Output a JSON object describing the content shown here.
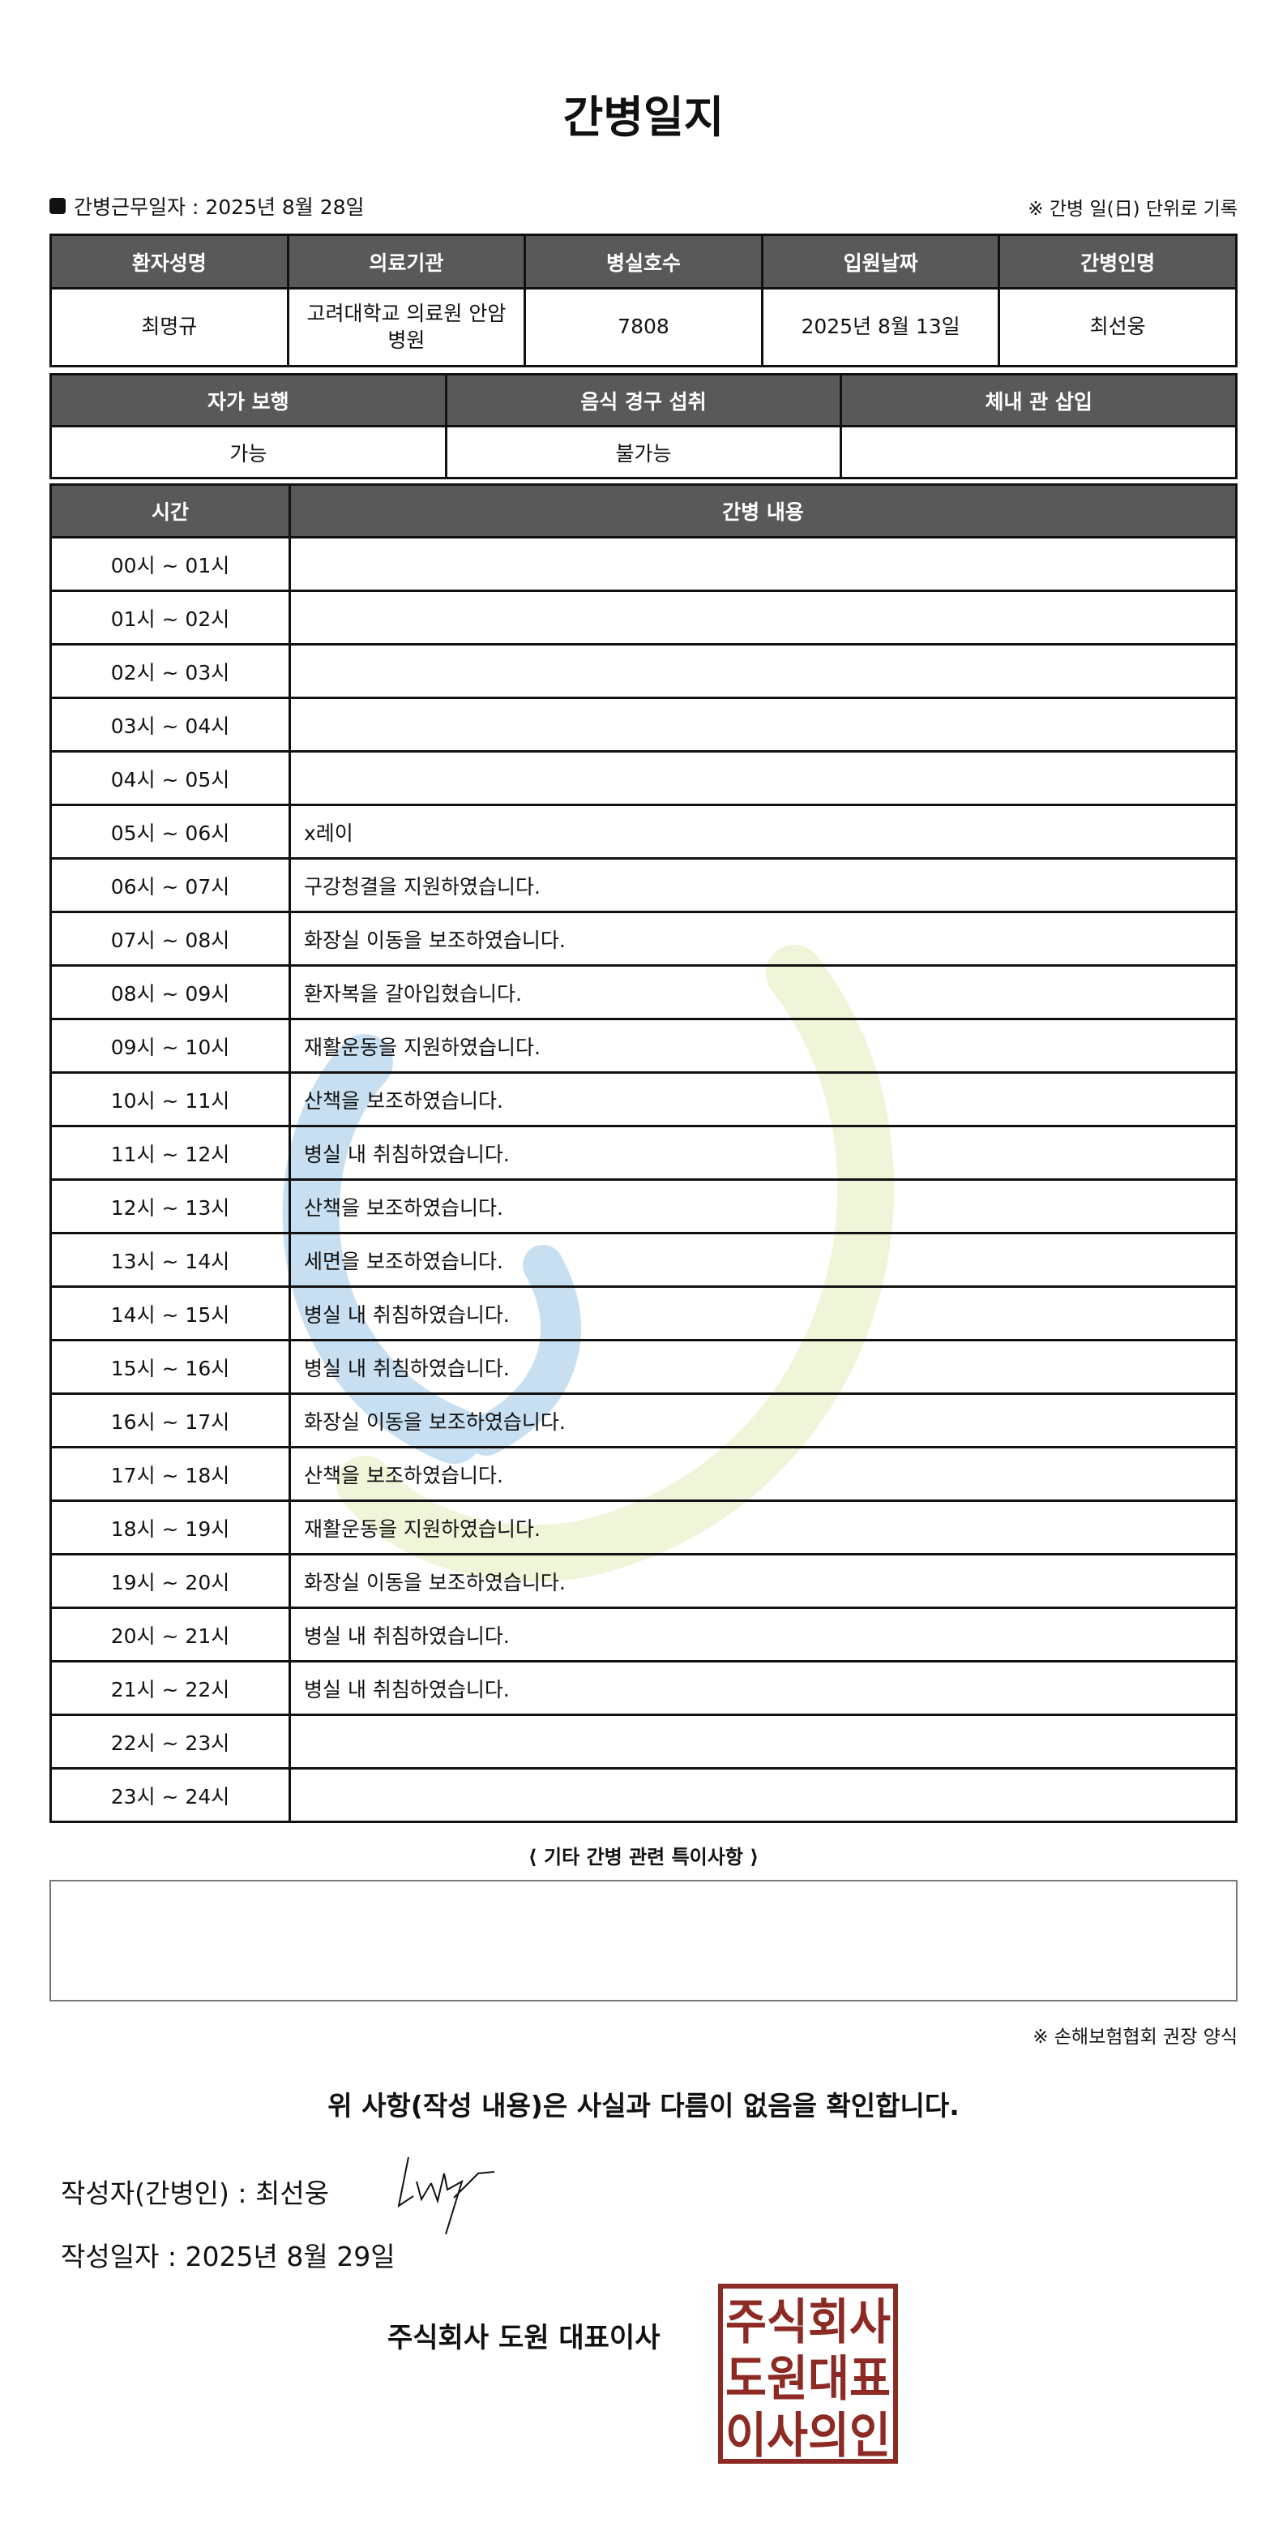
{
  "title": "간병일지",
  "work_date_label": "간병근무일자  :  2025년 8월 28일",
  "unit_note": "※ 간병 일(日) 단위로 기록",
  "patient_table": {
    "headers": [
      "환자성명",
      "의료기관",
      "병실호수",
      "입원날짜",
      "간병인명"
    ],
    "values": [
      "최명규",
      "고려대학교 의료원 안암병원",
      "7808",
      "2025년 8월 13일",
      "최선웅"
    ]
  },
  "status_table": {
    "headers": [
      "자가 보행",
      "음식 경구 섭취",
      "체내 관 삽입"
    ],
    "values": [
      "가능",
      "불가능",
      ""
    ]
  },
  "log_table": {
    "headers": [
      "시간",
      "간병 내용"
    ],
    "rows": [
      {
        "time": "00시 ~ 01시",
        "content": ""
      },
      {
        "time": "01시 ~ 02시",
        "content": ""
      },
      {
        "time": "02시 ~ 03시",
        "content": ""
      },
      {
        "time": "03시 ~ 04시",
        "content": ""
      },
      {
        "time": "04시 ~ 05시",
        "content": ""
      },
      {
        "time": "05시 ~ 06시",
        "content": "x레이"
      },
      {
        "time": "06시 ~ 07시",
        "content": "구강청결을 지원하였습니다."
      },
      {
        "time": "07시 ~ 08시",
        "content": "화장실 이동을 보조하였습니다."
      },
      {
        "time": "08시 ~ 09시",
        "content": "환자복을 갈아입혔습니다."
      },
      {
        "time": "09시 ~ 10시",
        "content": "재활운동을 지원하였습니다."
      },
      {
        "time": "10시 ~ 11시",
        "content": "산책을 보조하였습니다."
      },
      {
        "time": "11시 ~ 12시",
        "content": "병실 내 취침하였습니다."
      },
      {
        "time": "12시 ~ 13시",
        "content": "산책을 보조하였습니다."
      },
      {
        "time": "13시 ~ 14시",
        "content": "세면을 보조하였습니다."
      },
      {
        "time": "14시 ~ 15시",
        "content": "병실 내 취침하였습니다."
      },
      {
        "time": "15시 ~ 16시",
        "content": "병실 내 취침하였습니다."
      },
      {
        "time": "16시 ~ 17시",
        "content": "화장실 이동을 보조하였습니다."
      },
      {
        "time": "17시 ~ 18시",
        "content": "산책을 보조하였습니다."
      },
      {
        "time": "18시 ~ 19시",
        "content": "재활운동을 지원하였습니다."
      },
      {
        "time": "19시 ~ 20시",
        "content": "화장실 이동을 보조하였습니다."
      },
      {
        "time": "20시 ~ 21시",
        "content": "병실 내 취침하였습니다."
      },
      {
        "time": "21시 ~ 22시",
        "content": "병실 내 취침하였습니다."
      },
      {
        "time": "22시 ~ 23시",
        "content": ""
      },
      {
        "time": "23시 ~ 24시",
        "content": ""
      }
    ]
  },
  "notes_label": "⟨ 기타 간병 관련 특이사항 ⟩",
  "notes_value": "",
  "footnote": "※ 손해보험협회 권장 양식",
  "confirm": "위 사항(작성 내용)은 사실과 다름이 없음을 확인합니다.",
  "writer": "작성자(간병인) :   최선웅",
  "written_date": "작성일자 :   2025년 8월 29일",
  "company": "주식회사 도원   대표이사",
  "stamp_text": "주식회사 도원대표 이사의인",
  "colors": {
    "header_bg": "#595959",
    "stamp": "#8e2a24",
    "watermark_blue": "#3b8fcf",
    "watermark_green": "#c7dc7a"
  }
}
